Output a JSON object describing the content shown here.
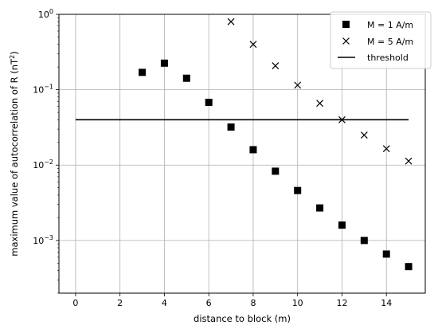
{
  "chart_data": {
    "type": "scatter",
    "xlabel": "distance to block (m)",
    "ylabel_prefix": "maximum value of autocorrelation of R (nT",
    "ylabel_sup": "2",
    "ylabel_suffix": ")",
    "xlim": [
      -0.75,
      15.75
    ],
    "ylim": [
      0.0002,
      1.0
    ],
    "yscale": "log",
    "grid": true,
    "legend_placement": "top-right",
    "x_ticks": [
      0,
      2,
      4,
      6,
      8,
      10,
      12,
      14
    ],
    "x_tick_labels": [
      "0",
      "2",
      "4",
      "6",
      "8",
      "10",
      "12",
      "14"
    ],
    "y_ticks": [
      {
        "value": 1.0,
        "base": "10",
        "exp": "0"
      },
      {
        "value": 0.1,
        "base": "10",
        "exp": "−1"
      },
      {
        "value": 0.01,
        "base": "10",
        "exp": "−2"
      },
      {
        "value": 0.001,
        "base": "10",
        "exp": "−3"
      }
    ],
    "series": [
      {
        "name": "M = 1 A/m",
        "marker": "square",
        "color": "#000000",
        "x": [
          3,
          4,
          5,
          6,
          7,
          8,
          9,
          10,
          11,
          12,
          13,
          14,
          15
        ],
        "y": [
          0.17,
          0.225,
          0.142,
          0.068,
          0.032,
          0.016,
          0.0083,
          0.0046,
          0.0027,
          0.0016,
          0.001,
          0.00066,
          0.00045
        ]
      },
      {
        "name": "M = 5 A/m",
        "marker": "x",
        "color": "#000000",
        "x": [
          7,
          8,
          9,
          10,
          11,
          12,
          13,
          14,
          15
        ],
        "y": [
          0.8,
          0.4,
          0.208,
          0.115,
          0.066,
          0.04,
          0.025,
          0.0165,
          0.0113
        ]
      }
    ],
    "lines": [
      {
        "name": "threshold",
        "y": 0.04,
        "x": [
          0,
          15
        ],
        "color": "#000000"
      }
    ]
  }
}
